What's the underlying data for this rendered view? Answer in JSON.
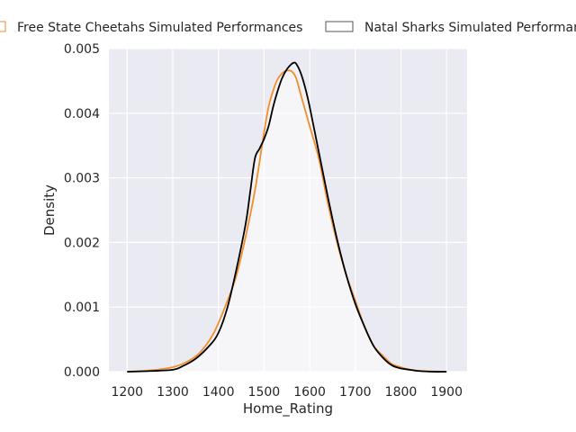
{
  "chart_data": {
    "type": "line",
    "title": "",
    "xlabel": "Home_Rating",
    "ylabel": "Density",
    "xlim": [
      1160,
      1945
    ],
    "ylim": [
      0,
      0.005
    ],
    "x_ticks": [
      1200,
      1300,
      1400,
      1500,
      1600,
      1700,
      1800,
      1900
    ],
    "y_ticks": [
      0.0,
      0.001,
      0.002,
      0.003,
      0.004,
      0.005
    ],
    "x_tick_labels": [
      "1200",
      "1300",
      "1400",
      "1500",
      "1600",
      "1700",
      "1800",
      "1900"
    ],
    "y_tick_labels": [
      "0.000",
      "0.001",
      "0.002",
      "0.003",
      "0.004",
      "0.005"
    ],
    "grid": true,
    "legend_position": "top (above plot)",
    "background": "#eaeaf2",
    "series": [
      {
        "name": "Free State Cheetahs Simulated Performances",
        "color": "#f28e2b",
        "style": "kde",
        "x": [
          1200,
          1250,
          1300,
          1330,
          1360,
          1390,
          1420,
          1440,
          1460,
          1480,
          1500,
          1510,
          1520,
          1530,
          1540,
          1550,
          1560,
          1570,
          1580,
          1600,
          1620,
          1640,
          1660,
          1680,
          1700,
          1720,
          1740,
          1760,
          1780,
          1800,
          1820,
          1850,
          1900
        ],
        "values": [
          0.0,
          2e-05,
          7e-05,
          0.00015,
          0.0003,
          0.0006,
          0.0011,
          0.0015,
          0.0021,
          0.0028,
          0.0037,
          0.0041,
          0.00435,
          0.00453,
          0.00462,
          0.00466,
          0.00465,
          0.00455,
          0.0043,
          0.0038,
          0.0033,
          0.0026,
          0.002,
          0.0015,
          0.0011,
          0.0007,
          0.0004,
          0.00025,
          0.00012,
          7e-05,
          3e-05,
          1e-05,
          0.0
        ]
      },
      {
        "name": "Natal Sharks Simulated Performances",
        "color": "#000000",
        "style": "kde",
        "x": [
          1200,
          1250,
          1300,
          1320,
          1350,
          1380,
          1400,
          1420,
          1440,
          1460,
          1470,
          1480,
          1490,
          1500,
          1510,
          1520,
          1530,
          1540,
          1550,
          1560,
          1565,
          1570,
          1580,
          1590,
          1600,
          1620,
          1640,
          1660,
          1680,
          1700,
          1720,
          1740,
          1760,
          1780,
          1800,
          1820,
          1840,
          1870,
          1900
        ],
        "values": [
          0.0,
          1e-05,
          3e-05,
          8e-05,
          0.0002,
          0.0004,
          0.0006,
          0.001,
          0.0016,
          0.0023,
          0.0028,
          0.0033,
          0.00345,
          0.0036,
          0.0038,
          0.0041,
          0.00435,
          0.00455,
          0.00468,
          0.00476,
          0.00478,
          0.00477,
          0.00463,
          0.0044,
          0.0041,
          0.0034,
          0.0027,
          0.00205,
          0.0015,
          0.00105,
          0.0007,
          0.0004,
          0.00022,
          0.0001,
          5e-05,
          3e-05,
          1e-05,
          0.0,
          0.0
        ]
      }
    ]
  }
}
